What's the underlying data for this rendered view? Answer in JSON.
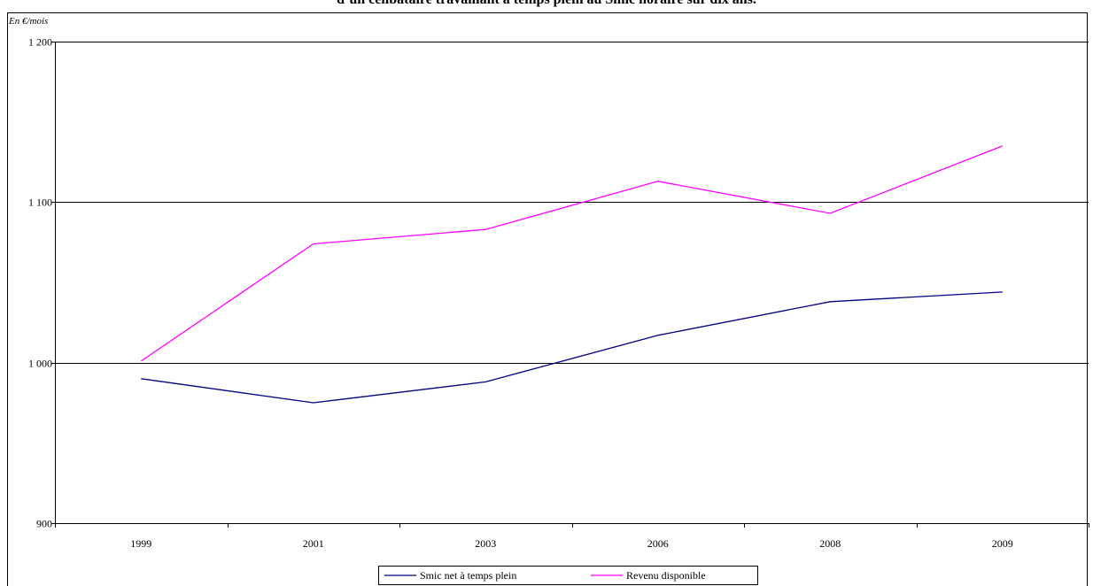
{
  "chart_data": {
    "type": "line",
    "title": "d’un célibataire travaillant à temps plein au Smic horaire sur dix ans.",
    "ylabel": "En €/mois",
    "xlabel": "",
    "categories": [
      "1999",
      "2001",
      "2003",
      "2006",
      "2008",
      "2009"
    ],
    "ylim": [
      900,
      1200
    ],
    "yticks": [
      900,
      1000,
      1100,
      1200
    ],
    "ytick_labels": [
      "900",
      "1 000",
      "1 100",
      "1 200"
    ],
    "grid": "horizontal",
    "legend_placement": "bottom-center",
    "series": [
      {
        "name": "Smic net à temps plein",
        "color": "#000080",
        "values": [
          990,
          975,
          988,
          1017,
          1038,
          1044
        ]
      },
      {
        "name": "Revenu disponible",
        "color": "#ff00ff",
        "values": [
          1001,
          1074,
          1083,
          1113,
          1093,
          1135
        ]
      }
    ]
  }
}
